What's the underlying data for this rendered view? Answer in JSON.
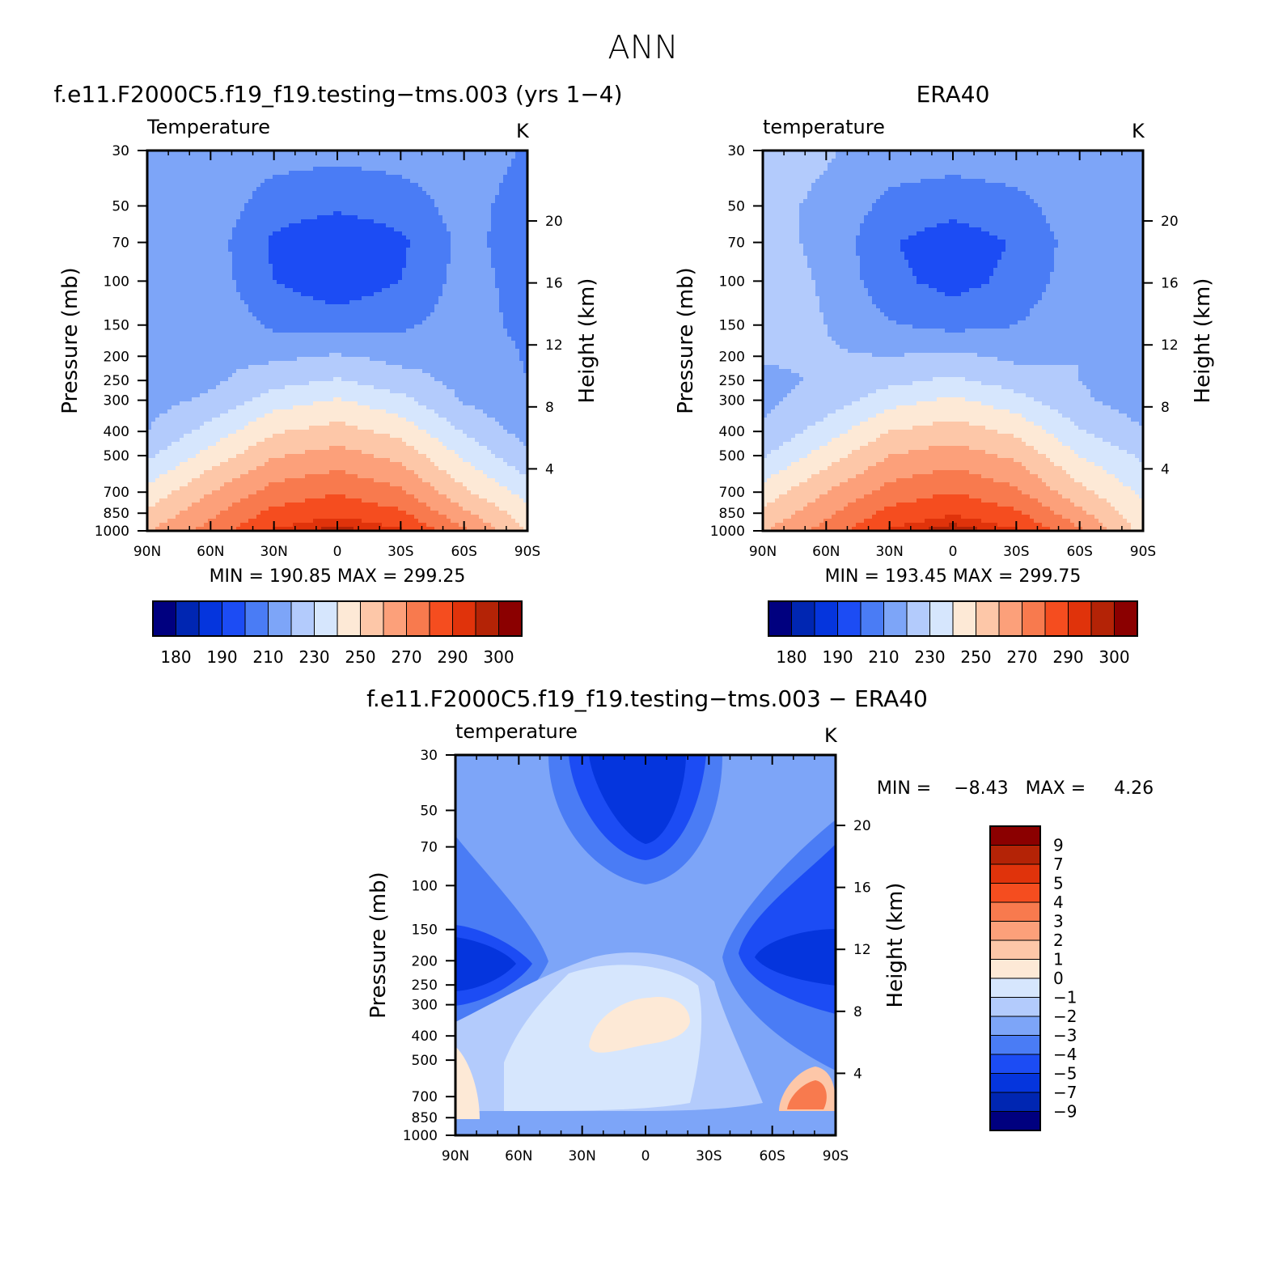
{
  "figure": {
    "main_title": "ANN",
    "diff_title": "f.e11.F2000C5.f19_f19.testing−tms.003 − ERA40",
    "diff_stats": "MIN =    −8.43   MAX =     4.26"
  },
  "colors": {
    "abs_levels": [
      "#00007f",
      "#0026b2",
      "#0535dd",
      "#1c4cf4",
      "#4a7cf5",
      "#7da5f8",
      "#b3cbfc",
      "#d6e6fd",
      "#fde9d6",
      "#fdc7a8",
      "#fca07a",
      "#f87a4e",
      "#f54d1f",
      "#e0330b",
      "#b42306",
      "#8b0000"
    ],
    "diff_levels": [
      "#00007f",
      "#0026b2",
      "#0535dd",
      "#1c4cf4",
      "#4a7cf5",
      "#7da5f8",
      "#b3cbfc",
      "#d6e6fd",
      "#fde9d6",
      "#fdc7a8",
      "#fca07a",
      "#f87a4e",
      "#f54d1f",
      "#e0330b",
      "#b42306",
      "#8b0000"
    ]
  },
  "chart_data": [
    {
      "type": "heatmap",
      "panel": "model",
      "title": "f.e11.F2000C5.f19_f19.testing−tms.003 (yrs 1−4)",
      "left_string": "Temperature",
      "units": "K",
      "xlabel": "",
      "ylabel": "Pressure (mb)",
      "ylabel_right": "Height (km)",
      "x_ticks": [
        "90N",
        "60N",
        "30N",
        "0",
        "30S",
        "60S",
        "90S"
      ],
      "x_values": [
        90,
        60,
        30,
        0,
        -30,
        -60,
        -90
      ],
      "y_ticks": [
        30,
        50,
        70,
        100,
        150,
        200,
        250,
        300,
        400,
        500,
        700,
        850,
        1000
      ],
      "y_scale": "log",
      "ylim": [
        1000,
        30
      ],
      "height_ticks": [
        4,
        8,
        12,
        16,
        20
      ],
      "min": 190.85,
      "max": 299.25,
      "stats": "MIN =  190.85   MAX =  299.25",
      "colorbar_labels": [
        "180",
        "190",
        "210",
        "230",
        "250",
        "270",
        "290",
        "300"
      ],
      "profile_x": [
        90,
        60,
        30,
        0,
        -30,
        -60,
        -90
      ],
      "profile_p": [
        1000,
        850,
        700,
        500,
        400,
        300,
        250,
        200,
        150,
        100,
        70,
        50,
        30
      ],
      "temperature": [
        [
          259,
          274,
          291,
          298,
          291,
          272,
          249
        ],
        [
          252,
          268,
          283,
          288,
          282,
          262,
          244
        ],
        [
          243,
          260,
          274,
          279,
          272,
          252,
          236
        ],
        [
          228,
          244,
          259,
          264,
          257,
          238,
          222
        ],
        [
          220,
          234,
          249,
          254,
          247,
          229,
          216
        ],
        [
          216,
          222,
          235,
          241,
          233,
          219,
          212
        ],
        [
          216,
          218,
          226,
          231,
          224,
          217,
          210
        ],
        [
          217,
          218,
          218,
          221,
          217,
          218,
          209
        ],
        [
          219,
          218,
          208,
          206,
          208,
          215,
          207
        ],
        [
          219,
          216,
          200,
          193,
          200,
          214,
          206
        ],
        [
          219,
          215,
          198,
          191,
          198,
          213,
          205
        ],
        [
          219,
          216,
          205,
          202,
          205,
          214,
          205
        ],
        [
          220,
          218,
          214,
          213,
          214,
          216,
          209
        ]
      ]
    },
    {
      "type": "heatmap",
      "panel": "obs",
      "title": "ERA40",
      "left_string": "temperature",
      "units": "K",
      "xlabel": "",
      "ylabel": "Pressure (mb)",
      "ylabel_right": "Height (km)",
      "x_ticks": [
        "90N",
        "60N",
        "30N",
        "0",
        "30S",
        "60S",
        "90S"
      ],
      "x_values": [
        90,
        60,
        30,
        0,
        -30,
        -60,
        -90
      ],
      "y_ticks": [
        30,
        50,
        70,
        100,
        150,
        200,
        250,
        300,
        400,
        500,
        700,
        850,
        1000
      ],
      "y_scale": "log",
      "ylim": [
        1000,
        30
      ],
      "height_ticks": [
        4,
        8,
        12,
        16,
        20
      ],
      "min": 193.45,
      "max": 299.75,
      "stats": "MIN =  193.45   MAX =  299.75",
      "colorbar_labels": [
        "180",
        "190",
        "210",
        "230",
        "250",
        "270",
        "290",
        "300"
      ],
      "profile_x": [
        90,
        60,
        30,
        0,
        -30,
        -60,
        -90
      ],
      "profile_p": [
        1000,
        850,
        700,
        500,
        400,
        300,
        250,
        200,
        150,
        100,
        70,
        50,
        30
      ],
      "temperature": [
        [
          259,
          274,
          291,
          299,
          291,
          272,
          246
        ],
        [
          252,
          268,
          283,
          289,
          282,
          263,
          243
        ],
        [
          244,
          260,
          274,
          280,
          272,
          253,
          238
        ],
        [
          229,
          245,
          260,
          265,
          258,
          240,
          228
        ],
        [
          221,
          235,
          250,
          255,
          248,
          231,
          221
        ],
        [
          218,
          224,
          236,
          242,
          234,
          222,
          214
        ],
        [
          218,
          221,
          227,
          232,
          225,
          220,
          213
        ],
        [
          221,
          221,
          220,
          222,
          218,
          220,
          213
        ],
        [
          224,
          220,
          211,
          207,
          210,
          218,
          213
        ],
        [
          224,
          219,
          203,
          196,
          203,
          216,
          212
        ],
        [
          223,
          218,
          201,
          194,
          201,
          215,
          211
        ],
        [
          223,
          218,
          207,
          204,
          207,
          216,
          212
        ],
        [
          224,
          221,
          216,
          215,
          216,
          219,
          217
        ]
      ]
    },
    {
      "type": "heatmap",
      "panel": "difference",
      "title": "f.e11.F2000C5.f19_f19.testing−tms.003 − ERA40",
      "left_string": "temperature",
      "units": "K",
      "xlabel": "",
      "ylabel": "Pressure (mb)",
      "ylabel_right": "Height (km)",
      "x_ticks": [
        "90N",
        "60N",
        "30N",
        "0",
        "30S",
        "60S",
        "90S"
      ],
      "x_values": [
        90,
        60,
        30,
        0,
        -30,
        -60,
        -90
      ],
      "y_ticks": [
        30,
        50,
        70,
        100,
        150,
        200,
        250,
        300,
        400,
        500,
        700,
        850,
        1000
      ],
      "y_scale": "log",
      "ylim": [
        1000,
        30
      ],
      "height_ticks": [
        4,
        8,
        12,
        16,
        20
      ],
      "min": -8.43,
      "max": 4.26,
      "colorbar_labels": [
        "9",
        "7",
        "5",
        "4",
        "3",
        "2",
        "1",
        "0",
        "−1",
        "−2",
        "−3",
        "−4",
        "−5",
        "−7",
        "−9"
      ]
    }
  ]
}
